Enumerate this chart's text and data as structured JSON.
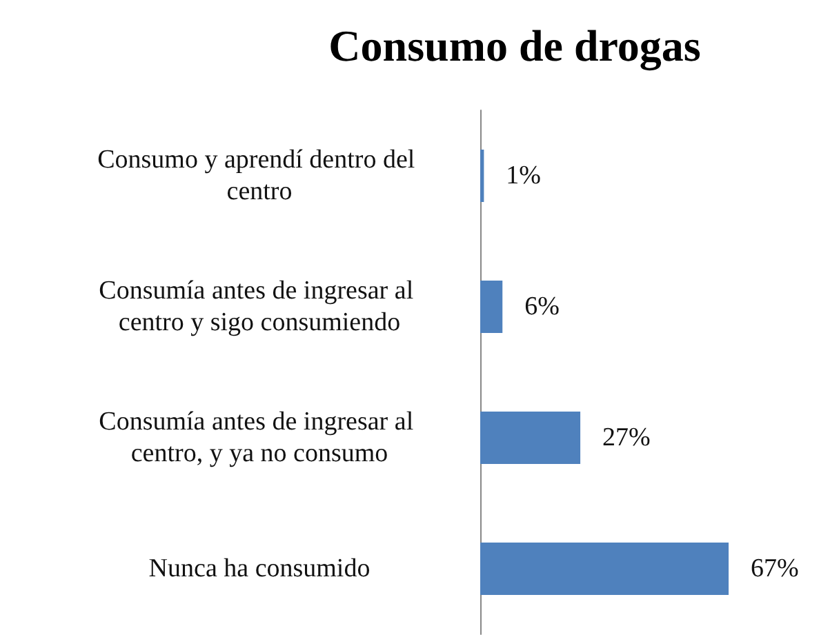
{
  "chart_data": {
    "type": "bar",
    "orientation": "horizontal",
    "title": "Consumo de drogas",
    "categories": [
      "Consumo y aprendí dentro del centro",
      "Consumía antes de ingresar al centro y sigo consumiendo",
      "Consumía antes de ingresar al centro, y ya no consumo",
      "Nunca ha consumido"
    ],
    "values": [
      1,
      6,
      27,
      67
    ],
    "color": "#4f81bd",
    "value_labels": [
      "1%",
      "6%",
      "27%",
      "67%"
    ]
  }
}
